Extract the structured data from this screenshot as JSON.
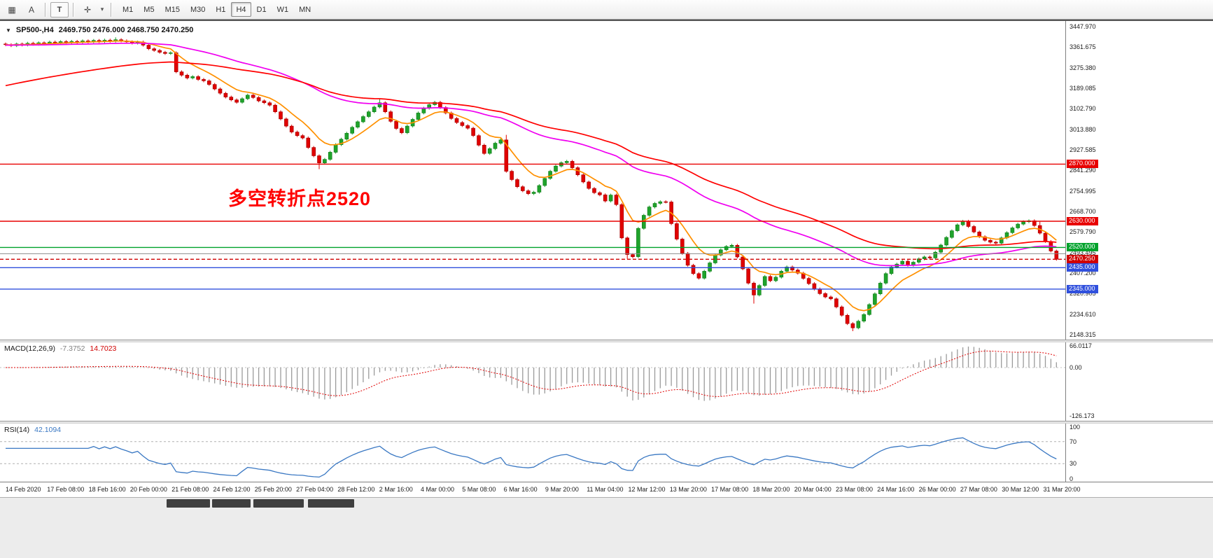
{
  "toolbar": {
    "left_icons": [
      {
        "name": "market-watch-grid-icon",
        "glyph": "▦"
      },
      {
        "name": "font-a-icon",
        "glyph": "A"
      },
      {
        "name": "text-tool-icon",
        "glyph": "T"
      },
      {
        "name": "indicators-icon",
        "glyph": "✛"
      },
      {
        "name": "dropdown-arrow-icon",
        "glyph": "▾"
      }
    ],
    "timeframes": [
      "M1",
      "M5",
      "M15",
      "M30",
      "H1",
      "H4",
      "D1",
      "W1",
      "MN"
    ],
    "active_timeframe": "H4"
  },
  "chart": {
    "title_symbol": "SP500-,H4",
    "title_ohlc": "2469.750 2476.000 2468.750 2470.250",
    "title_arrow": "▼",
    "annotation": "多空转折点2520",
    "price_axis_labels": [
      "3447.970",
      "3361.675",
      "3275.380",
      "3189.085",
      "3102.790",
      "3013.880",
      "2927.585",
      "2841.290",
      "2754.995",
      "2668.700",
      "2579.790",
      "2493.495",
      "2407.200",
      "2320.905",
      "2234.610",
      "2148.315"
    ],
    "hlines": [
      {
        "price": 2870.0,
        "label": "2870.000",
        "color": "#e80000",
        "badge": true,
        "dashed": false
      },
      {
        "price": 2630.0,
        "label": "2630.000",
        "color": "#e80000",
        "badge": true,
        "dashed": false
      },
      {
        "price": 2520.0,
        "label": "2520.000",
        "color": "#00a22b",
        "badge": true,
        "dashed": false
      },
      {
        "price": 2493.495,
        "label": "",
        "color": "#8c8c8c",
        "badge": false,
        "dashed": false
      },
      {
        "price": 2470.25,
        "label": "2470.250",
        "color": "#d00000",
        "badge": true,
        "dashed": true
      },
      {
        "price": 2435.0,
        "label": "2435.000",
        "color": "#3050dd",
        "badge": true,
        "dashed": false
      },
      {
        "price": 2345.0,
        "label": "2345.000",
        "color": "#3050dd",
        "badge": true,
        "dashed": false
      }
    ]
  },
  "macd_panel": {
    "label": "MACD(12,26,9)",
    "value_main": "-7.3752",
    "value_signal": "14.7023",
    "axis_labels": [
      "66.0117",
      "0.00",
      "-126.173"
    ]
  },
  "rsi_panel": {
    "label": "RSI(14)",
    "value": "42.1094",
    "axis_labels": [
      "100",
      "70",
      "30",
      "0"
    ],
    "levels": [
      70,
      30
    ]
  },
  "bottom_bar": {
    "tabs": [
      "",
      "",
      "",
      ""
    ]
  },
  "chart_data": {
    "type": "candlestick",
    "symbol": "SP500-",
    "timeframe": "H4",
    "title": "SP500-,H4 2469.750 2476.000 2468.750 2470.250",
    "price_range_top": 3447.97,
    "price_step": 86.295,
    "x_labels": [
      "14 Feb 2020",
      "17 Feb 08:00",
      "18 Feb 16:00",
      "20 Feb 00:00",
      "21 Feb 08:00",
      "24 Feb 12:00",
      "25 Feb 20:00",
      "27 Feb 04:00",
      "28 Feb 12:00",
      "2 Mar 16:00",
      "4 Mar 00:00",
      "5 Mar 08:00",
      "6 Mar 16:00",
      "9 Mar 20:00",
      "11 Mar 04:00",
      "12 Mar 12:00",
      "13 Mar 20:00",
      "17 Mar 08:00",
      "18 Mar 20:00",
      "20 Mar 04:00",
      "23 Mar 08:00",
      "24 Mar 16:00",
      "26 Mar 00:00",
      "27 Mar 08:00",
      "30 Mar 12:00",
      "31 Mar 20:00"
    ],
    "closes": [
      3372,
      3368,
      3375,
      3371,
      3378,
      3374,
      3380,
      3376,
      3383,
      3379,
      3385,
      3381,
      3386,
      3382,
      3388,
      3384,
      3390,
      3385,
      3391,
      3387,
      3393,
      3388,
      3384,
      3379,
      3383,
      3370,
      3355,
      3348,
      3340,
      3335,
      3338,
      3258,
      3244,
      3232,
      3238,
      3226,
      3220,
      3205,
      3186,
      3168,
      3152,
      3140,
      3130,
      3145,
      3160,
      3150,
      3136,
      3128,
      3118,
      3090,
      3060,
      3030,
      3005,
      2990,
      2980,
      2940,
      2905,
      2875,
      2890,
      2920,
      2952,
      2975,
      3000,
      3025,
      3048,
      3070,
      3090,
      3110,
      3128,
      3090,
      3050,
      3020,
      3002,
      3030,
      3058,
      3085,
      3105,
      3120,
      3130,
      3108,
      3085,
      3062,
      3045,
      3032,
      3021,
      2990,
      2950,
      2915,
      2935,
      2958,
      2972,
      2840,
      2805,
      2775,
      2758,
      2746,
      2752,
      2780,
      2810,
      2840,
      2862,
      2876,
      2882,
      2855,
      2825,
      2795,
      2768,
      2750,
      2741,
      2715,
      2740,
      2700,
      2560,
      2490,
      2481,
      2600,
      2655,
      2690,
      2705,
      2712,
      2711,
      2620,
      2555,
      2495,
      2445,
      2410,
      2391,
      2420,
      2455,
      2488,
      2510,
      2524,
      2529,
      2480,
      2430,
      2370,
      2320,
      2360,
      2398,
      2380,
      2395,
      2420,
      2438,
      2425,
      2412,
      2390,
      2368,
      2345,
      2326,
      2312,
      2304,
      2270,
      2235,
      2200,
      2182,
      2210,
      2238,
      2280,
      2325,
      2370,
      2410,
      2438,
      2450,
      2462,
      2445,
      2458,
      2472,
      2480,
      2476,
      2500,
      2530,
      2562,
      2590,
      2615,
      2630,
      2608,
      2585,
      2565,
      2550,
      2542,
      2538,
      2560,
      2582,
      2602,
      2618,
      2628,
      2632,
      2612,
      2580,
      2545,
      2505,
      2470.25
    ],
    "wick_overrides": {
      "20": [
        4,
        0
      ],
      "57": [
        0,
        20
      ],
      "68": [
        12,
        0
      ],
      "91": [
        15,
        0
      ],
      "113": [
        0,
        12
      ],
      "136": [
        0,
        30
      ],
      "154": [
        0,
        8
      ],
      "188": [
        10,
        0
      ]
    },
    "moving_averages": [
      {
        "name": "ma-fast",
        "color": "#ff9000",
        "alpha": 0.2,
        "seed": 3372
      },
      {
        "name": "ma-medium",
        "color": "#f000f0",
        "alpha": 0.04,
        "seed": 3370
      },
      {
        "name": "ma-slow",
        "color": "#ff0000",
        "alpha": 0.028,
        "seed": 3195
      }
    ],
    "macd": {
      "fast": 12,
      "slow": 26,
      "signal": 9
    },
    "rsi": {
      "period": 14
    },
    "colors": {
      "up": "#1fa32b",
      "up_border": "#0d7a17",
      "down": "#e00000",
      "down_border": "#a00000",
      "macd_hist": "#9a9a9a",
      "macd_signal": "#e00000",
      "rsi_line": "#3a78c3"
    }
  }
}
